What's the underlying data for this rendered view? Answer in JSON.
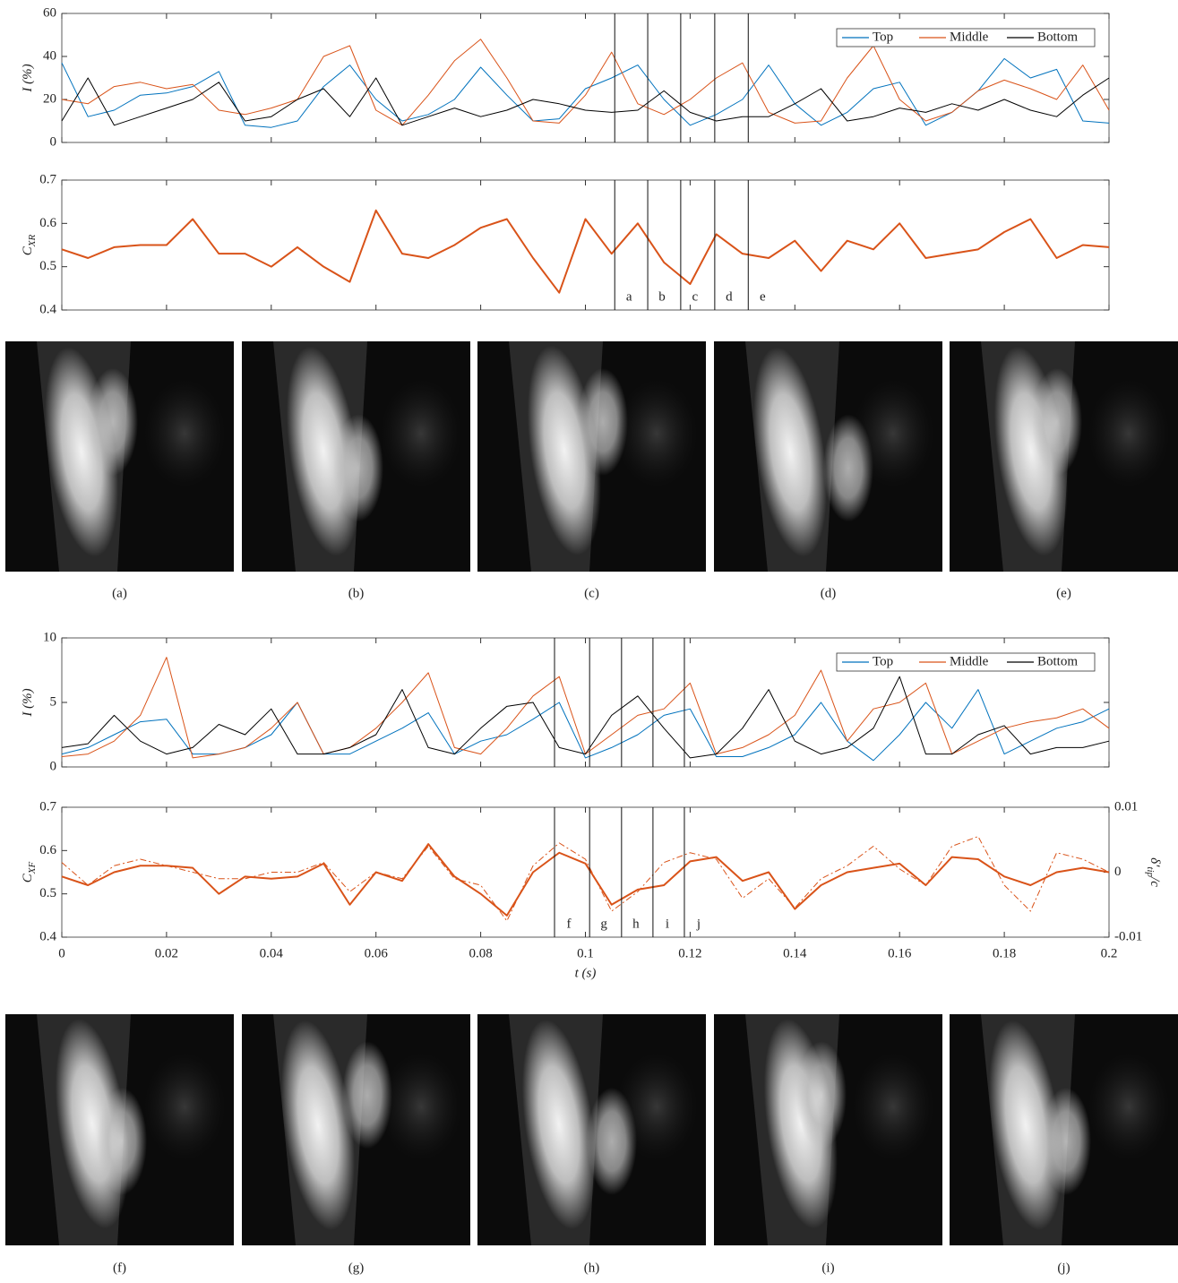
{
  "chart_data": [
    {
      "type": "line",
      "y_label": "I (%)",
      "x": [
        0,
        0.005,
        0.01,
        0.015,
        0.02,
        0.025,
        0.03,
        0.035,
        0.04,
        0.045,
        0.05,
        0.055,
        0.06,
        0.065,
        0.07,
        0.075,
        0.08,
        0.085,
        0.09,
        0.095,
        0.1,
        0.105,
        0.11,
        0.115,
        0.12,
        0.125,
        0.13,
        0.135,
        0.14,
        0.145,
        0.15,
        0.155,
        0.16,
        0.165,
        0.17,
        0.175,
        0.18,
        0.185,
        0.19,
        0.195,
        0.2
      ],
      "xlim": [
        0,
        0.2
      ],
      "xticks": [
        0,
        0.02,
        0.04,
        0.06,
        0.08,
        0.1,
        0.12,
        0.14,
        0.16,
        0.18,
        0.2
      ],
      "show_xtick_labels": false,
      "ylim": [
        0,
        60
      ],
      "yticks": [
        0,
        20,
        40,
        60
      ],
      "legend": "upper right",
      "series": [
        {
          "name": "Top",
          "color": "#0072bd",
          "values": [
            37,
            12,
            15,
            22,
            23,
            26,
            33,
            8,
            7,
            10,
            26,
            36,
            20,
            10,
            13,
            20,
            35,
            22,
            10,
            11,
            25,
            30,
            36,
            20,
            8,
            13,
            20,
            36,
            18,
            8,
            14,
            25,
            28,
            8,
            14,
            24,
            39,
            30,
            34,
            10,
            9
          ]
        },
        {
          "name": "Middle",
          "color": "#d95319",
          "values": [
            20,
            18,
            26,
            28,
            25,
            27,
            15,
            13,
            16,
            20,
            40,
            45,
            15,
            8,
            22,
            38,
            48,
            30,
            10,
            9,
            22,
            42,
            18,
            13,
            20,
            30,
            37,
            14,
            9,
            10,
            30,
            45,
            20,
            10,
            14,
            24,
            29,
            25,
            20,
            36,
            15
          ]
        },
        {
          "name": "Bottom",
          "color": "#000000",
          "values": [
            10,
            30,
            8,
            12,
            16,
            20,
            28,
            10,
            12,
            20,
            25,
            12,
            30,
            8,
            12,
            16,
            12,
            15,
            20,
            18,
            15,
            14,
            15,
            24,
            14,
            10,
            12,
            12,
            18,
            25,
            10,
            12,
            16,
            14,
            18,
            15,
            20,
            15,
            12,
            22,
            30
          ]
        }
      ],
      "markers": [
        0.1056,
        0.1119,
        0.1182,
        0.1247,
        0.1311
      ]
    },
    {
      "type": "line",
      "y_label": "C",
      "y_label_sub": "XR",
      "x": [
        0,
        0.005,
        0.01,
        0.015,
        0.02,
        0.025,
        0.03,
        0.035,
        0.04,
        0.045,
        0.05,
        0.055,
        0.06,
        0.065,
        0.07,
        0.075,
        0.08,
        0.085,
        0.09,
        0.095,
        0.1,
        0.105,
        0.11,
        0.115,
        0.12,
        0.125,
        0.13,
        0.135,
        0.14,
        0.145,
        0.15,
        0.155,
        0.16,
        0.165,
        0.17,
        0.175,
        0.18,
        0.185,
        0.19,
        0.195,
        0.2
      ],
      "xlim": [
        0,
        0.2
      ],
      "xticks": [
        0,
        0.02,
        0.04,
        0.06,
        0.08,
        0.1,
        0.12,
        0.14,
        0.16,
        0.18,
        0.2
      ],
      "show_xtick_labels": false,
      "ylim": [
        0.4,
        0.7
      ],
      "yticks": [
        0.4,
        0.5,
        0.6,
        0.7
      ],
      "series": [
        {
          "color": "#d95319",
          "values": [
            0.54,
            0.52,
            0.545,
            0.55,
            0.55,
            0.61,
            0.53,
            0.53,
            0.5,
            0.545,
            0.5,
            0.465,
            0.63,
            0.53,
            0.52,
            0.55,
            0.59,
            0.61,
            0.52,
            0.44,
            0.61,
            0.53,
            0.6,
            0.51,
            0.46,
            0.575,
            0.53,
            0.52,
            0.56,
            0.49,
            0.56,
            0.54,
            0.6,
            0.52,
            0.53,
            0.54,
            0.58,
            0.61,
            0.52,
            0.55,
            0.545
          ]
        }
      ],
      "markers": [
        {
          "x": 0.1056,
          "label": "a"
        },
        {
          "x": 0.1119,
          "label": "b"
        },
        {
          "x": 0.1182,
          "label": "c"
        },
        {
          "x": 0.1247,
          "label": "d"
        },
        {
          "x": 0.1311,
          "label": "e"
        }
      ]
    },
    {
      "type": "line",
      "y_label": "I (%)",
      "x": [
        0,
        0.005,
        0.01,
        0.015,
        0.02,
        0.025,
        0.03,
        0.035,
        0.04,
        0.045,
        0.05,
        0.055,
        0.06,
        0.065,
        0.07,
        0.075,
        0.08,
        0.085,
        0.09,
        0.095,
        0.1,
        0.105,
        0.11,
        0.115,
        0.12,
        0.125,
        0.13,
        0.135,
        0.14,
        0.145,
        0.15,
        0.155,
        0.16,
        0.165,
        0.17,
        0.175,
        0.18,
        0.185,
        0.19,
        0.195,
        0.2
      ],
      "xlim": [
        0,
        0.2
      ],
      "xticks": [
        0,
        0.02,
        0.04,
        0.06,
        0.08,
        0.1,
        0.12,
        0.14,
        0.16,
        0.18,
        0.2
      ],
      "show_xtick_labels": false,
      "ylim": [
        0,
        10
      ],
      "yticks": [
        0,
        5,
        10
      ],
      "legend": "upper right",
      "series": [
        {
          "name": "Top",
          "color": "#0072bd",
          "values": [
            1,
            1.5,
            2.5,
            3.5,
            3.7,
            1,
            1,
            1.5,
            2.5,
            5,
            1,
            1,
            2,
            3,
            4.2,
            1,
            2,
            2.5,
            3.7,
            5,
            0.7,
            1.5,
            2.5,
            4,
            4.5,
            0.8,
            0.8,
            1.5,
            2.5,
            5,
            2,
            0.5,
            2.5,
            5,
            3,
            6,
            1,
            2,
            3,
            3.5,
            4.5
          ]
        },
        {
          "name": "Middle",
          "color": "#d95319",
          "values": [
            0.8,
            1,
            2,
            4,
            8.5,
            0.7,
            1,
            1.5,
            3,
            5,
            1,
            1.5,
            3,
            5,
            7.3,
            1.5,
            1,
            3,
            5.5,
            7,
            1,
            2.5,
            4,
            4.5,
            6.5,
            1,
            1.5,
            2.5,
            4,
            7.5,
            2,
            4.5,
            5,
            6.5,
            1,
            2,
            3,
            3.5,
            3.8,
            4.5,
            3
          ]
        },
        {
          "name": "Bottom",
          "color": "#000000",
          "values": [
            1.5,
            1.8,
            4,
            2,
            1,
            1.5,
            3.3,
            2.5,
            4.5,
            1,
            1,
            1.5,
            2.5,
            6,
            1.5,
            1,
            3,
            4.7,
            5,
            1.5,
            1,
            4,
            5.5,
            3,
            0.7,
            1,
            3,
            6,
            2,
            1,
            1.5,
            3,
            7,
            1,
            1,
            2.5,
            3.2,
            1,
            1.5,
            1.5,
            2
          ]
        }
      ],
      "markers": [
        0.0941,
        0.1008,
        0.1069,
        0.1129,
        0.1189
      ]
    },
    {
      "type": "line",
      "y_label": "C",
      "y_label_sub": "XF",
      "x_label": "t (s)",
      "y2_label": "δ′",
      "y2_label_sub": "tip",
      "y2_label_suffix": "/c",
      "x": [
        0,
        0.005,
        0.01,
        0.015,
        0.02,
        0.025,
        0.03,
        0.035,
        0.04,
        0.045,
        0.05,
        0.055,
        0.06,
        0.065,
        0.07,
        0.075,
        0.08,
        0.085,
        0.09,
        0.095,
        0.1,
        0.105,
        0.11,
        0.115,
        0.12,
        0.125,
        0.13,
        0.135,
        0.14,
        0.145,
        0.15,
        0.155,
        0.16,
        0.165,
        0.17,
        0.175,
        0.18,
        0.185,
        0.19,
        0.195,
        0.2
      ],
      "xlim": [
        0,
        0.2
      ],
      "xticks": [
        0,
        0.02,
        0.04,
        0.06,
        0.08,
        0.1,
        0.12,
        0.14,
        0.16,
        0.18,
        0.2
      ],
      "show_xtick_labels": true,
      "ylim": [
        0.4,
        0.7
      ],
      "yticks": [
        0.4,
        0.5,
        0.6,
        0.7
      ],
      "y2lim": [
        -0.01,
        0.01
      ],
      "y2ticks": [
        -0.01,
        0,
        0.01
      ],
      "series": [
        {
          "color": "#d95319",
          "values": [
            0.54,
            0.52,
            0.55,
            0.565,
            0.565,
            0.56,
            0.5,
            0.54,
            0.535,
            0.54,
            0.57,
            0.475,
            0.55,
            0.53,
            0.615,
            0.54,
            0.5,
            0.45,
            0.55,
            0.595,
            0.57,
            0.475,
            0.51,
            0.52,
            0.575,
            0.585,
            0.53,
            0.55,
            0.465,
            0.52,
            0.55,
            0.56,
            0.57,
            0.52,
            0.585,
            0.58,
            0.54,
            0.52,
            0.55,
            0.56,
            0.55
          ]
        },
        {
          "color": "#d95319",
          "axis": "y2",
          "dash": "dash-dot",
          "values": [
            0.0015,
            -0.002,
            0.001,
            0.002,
            0.001,
            0,
            -0.001,
            -0.001,
            0,
            0,
            0.0015,
            -0.003,
            0,
            -0.001,
            0.004,
            -0.001,
            -0.002,
            -0.0075,
            0.001,
            0.0045,
            0.002,
            -0.006,
            -0.003,
            0.0015,
            0.003,
            0.002,
            -0.004,
            -0.001,
            -0.0055,
            -0.001,
            0.001,
            0.004,
            0.0005,
            -0.002,
            0.004,
            0.0055,
            -0.002,
            -0.006,
            0.003,
            0.002,
            0
          ]
        }
      ],
      "markers": [
        {
          "x": 0.0941,
          "label": "f"
        },
        {
          "x": 0.1008,
          "label": "g"
        },
        {
          "x": 0.1069,
          "label": "h"
        },
        {
          "x": 0.1129,
          "label": "i"
        },
        {
          "x": 0.1189,
          "label": "j"
        }
      ]
    }
  ],
  "panels": [
    "(a)",
    "(b)",
    "(c)",
    "(d)",
    "(e)",
    "(f)",
    "(g)",
    "(h)",
    "(i)",
    "(j)"
  ]
}
